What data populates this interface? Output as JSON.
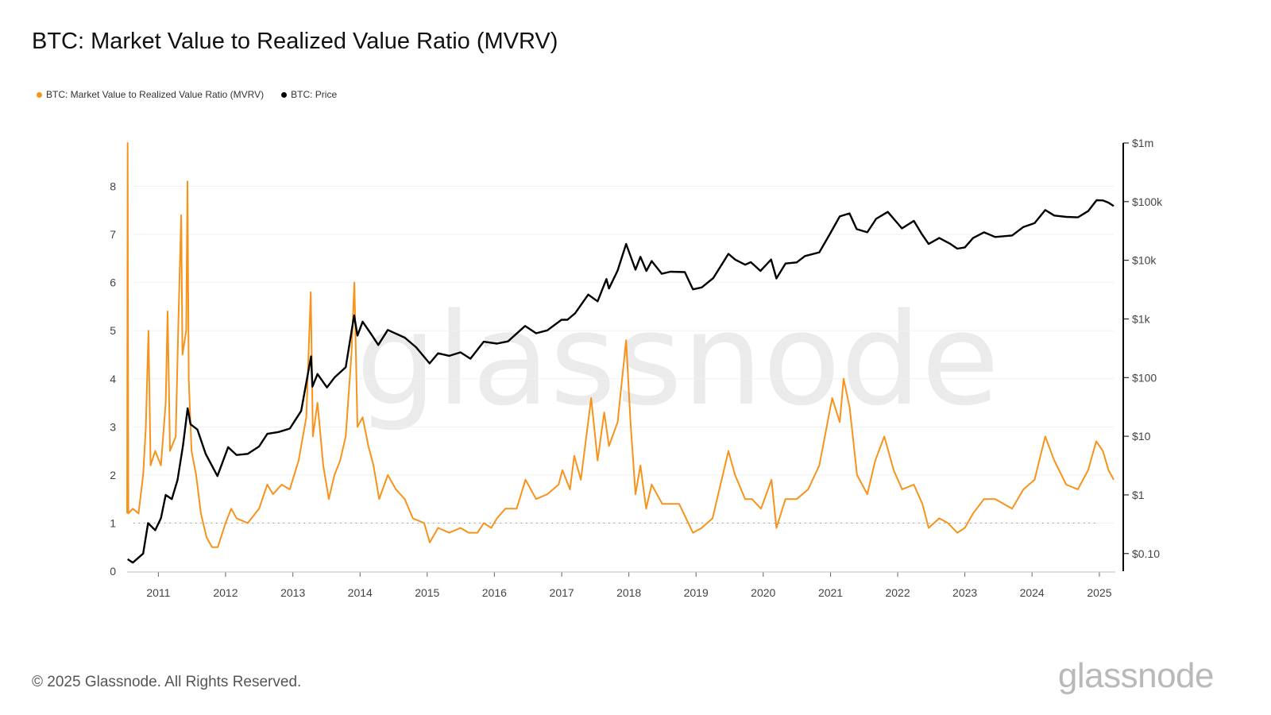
{
  "header": {
    "title": "BTC: Market Value to Realized Value Ratio (MVRV)"
  },
  "legend": [
    {
      "label": "BTC: Market Value to Realized Value Ratio (MVRV)",
      "color": "#f7931a"
    },
    {
      "label": "BTC: Price",
      "color": "#000000"
    }
  ],
  "watermark": "glassnode",
  "footer": {
    "copyright": "© 2025 Glassnode. All Rights Reserved.",
    "brand": "glassnode"
  },
  "chart_data": {
    "type": "line",
    "title": "BTC: Market Value to Realized Value Ratio (MVRV)",
    "x_ticks": [
      "2011",
      "2012",
      "2013",
      "2014",
      "2015",
      "2016",
      "2017",
      "2018",
      "2019",
      "2020",
      "2021",
      "2022",
      "2023",
      "2024",
      "2025"
    ],
    "y_left_ticks": [
      "0",
      "1",
      "2",
      "3",
      "4",
      "5",
      "6",
      "7",
      "8"
    ],
    "y_left_range": [
      0,
      8.9
    ],
    "y_right_ticks": [
      "$0.10",
      "$1",
      "$10",
      "$100",
      "$1k",
      "$10k",
      "$100k",
      "$1m"
    ],
    "y_right_scale": "log",
    "y_right_range": [
      0.05,
      1000000
    ],
    "x_range": [
      "2010-07-15",
      "2025-03-20"
    ],
    "reference_line": {
      "axis": "left",
      "value": 1,
      "style": "dotted"
    },
    "grid": "horizontal",
    "legend_position": "top-left",
    "series": [
      {
        "name": "BTC: Market Value to Realized Value Ratio (MVRV)",
        "color": "#f7931a",
        "axis": "left",
        "points": [
          [
            "2010-07-15",
            1.2
          ],
          [
            "2010-07-18",
            8.9
          ],
          [
            "2010-07-22",
            1.2
          ],
          [
            "2010-08-15",
            1.3
          ],
          [
            "2010-09-15",
            1.2
          ],
          [
            "2010-10-10",
            2.0
          ],
          [
            "2010-10-25",
            3.0
          ],
          [
            "2010-11-08",
            5.0
          ],
          [
            "2010-11-20",
            2.2
          ],
          [
            "2010-12-15",
            2.5
          ],
          [
            "2011-01-15",
            2.2
          ],
          [
            "2011-02-10",
            3.5
          ],
          [
            "2011-02-20",
            5.4
          ],
          [
            "2011-03-05",
            2.5
          ],
          [
            "2011-04-05",
            2.8
          ],
          [
            "2011-04-20",
            5.2
          ],
          [
            "2011-05-05",
            7.4
          ],
          [
            "2011-05-12",
            4.5
          ],
          [
            "2011-06-01",
            5.0
          ],
          [
            "2011-06-08",
            8.1
          ],
          [
            "2011-06-15",
            4.0
          ],
          [
            "2011-06-30",
            2.5
          ],
          [
            "2011-07-25",
            2.0
          ],
          [
            "2011-08-20",
            1.2
          ],
          [
            "2011-09-20",
            0.7
          ],
          [
            "2011-10-20",
            0.5
          ],
          [
            "2011-11-20",
            0.5
          ],
          [
            "2012-01-01",
            1.0
          ],
          [
            "2012-02-01",
            1.3
          ],
          [
            "2012-03-01",
            1.1
          ],
          [
            "2012-05-01",
            1.0
          ],
          [
            "2012-07-01",
            1.3
          ],
          [
            "2012-08-15",
            1.8
          ],
          [
            "2012-09-15",
            1.6
          ],
          [
            "2012-11-01",
            1.8
          ],
          [
            "2012-12-15",
            1.7
          ],
          [
            "2013-02-01",
            2.3
          ],
          [
            "2013-03-15",
            3.2
          ],
          [
            "2013-04-08",
            5.8
          ],
          [
            "2013-04-20",
            2.8
          ],
          [
            "2013-05-15",
            3.5
          ],
          [
            "2013-06-15",
            2.2
          ],
          [
            "2013-07-15",
            1.5
          ],
          [
            "2013-08-15",
            2.0
          ],
          [
            "2013-09-15",
            2.3
          ],
          [
            "2013-10-15",
            2.8
          ],
          [
            "2013-11-15",
            4.5
          ],
          [
            "2013-12-01",
            6.0
          ],
          [
            "2013-12-18",
            3.0
          ],
          [
            "2014-01-15",
            3.2
          ],
          [
            "2014-02-15",
            2.6
          ],
          [
            "2014-03-15",
            2.2
          ],
          [
            "2014-04-15",
            1.5
          ],
          [
            "2014-06-01",
            2.0
          ],
          [
            "2014-07-15",
            1.7
          ],
          [
            "2014-09-01",
            1.5
          ],
          [
            "2014-10-15",
            1.1
          ],
          [
            "2014-12-15",
            1.0
          ],
          [
            "2015-01-15",
            0.6
          ],
          [
            "2015-03-01",
            0.9
          ],
          [
            "2015-05-01",
            0.8
          ],
          [
            "2015-07-01",
            0.9
          ],
          [
            "2015-08-15",
            0.8
          ],
          [
            "2015-10-01",
            0.8
          ],
          [
            "2015-11-05",
            1.0
          ],
          [
            "2015-12-15",
            0.9
          ],
          [
            "2016-01-15",
            1.1
          ],
          [
            "2016-03-01",
            1.3
          ],
          [
            "2016-05-01",
            1.3
          ],
          [
            "2016-06-18",
            1.9
          ],
          [
            "2016-08-15",
            1.5
          ],
          [
            "2016-10-15",
            1.6
          ],
          [
            "2016-12-15",
            1.8
          ],
          [
            "2017-01-05",
            2.1
          ],
          [
            "2017-02-15",
            1.7
          ],
          [
            "2017-03-10",
            2.4
          ],
          [
            "2017-04-15",
            1.9
          ],
          [
            "2017-06-10",
            3.6
          ],
          [
            "2017-07-15",
            2.3
          ],
          [
            "2017-08-20",
            3.3
          ],
          [
            "2017-09-15",
            2.6
          ],
          [
            "2017-11-01",
            3.1
          ],
          [
            "2017-12-17",
            4.8
          ],
          [
            "2018-01-10",
            3.1
          ],
          [
            "2018-02-06",
            1.6
          ],
          [
            "2018-03-05",
            2.2
          ],
          [
            "2018-04-05",
            1.3
          ],
          [
            "2018-05-05",
            1.8
          ],
          [
            "2018-07-01",
            1.4
          ],
          [
            "2018-08-15",
            1.4
          ],
          [
            "2018-10-01",
            1.4
          ],
          [
            "2018-11-20",
            1.0
          ],
          [
            "2018-12-15",
            0.8
          ],
          [
            "2019-02-01",
            0.9
          ],
          [
            "2019-04-01",
            1.1
          ],
          [
            "2019-06-26",
            2.5
          ],
          [
            "2019-08-01",
            2.0
          ],
          [
            "2019-09-25",
            1.5
          ],
          [
            "2019-11-01",
            1.5
          ],
          [
            "2019-12-20",
            1.3
          ],
          [
            "2020-02-15",
            1.9
          ],
          [
            "2020-03-13",
            0.9
          ],
          [
            "2020-05-01",
            1.5
          ],
          [
            "2020-07-01",
            1.5
          ],
          [
            "2020-09-01",
            1.7
          ],
          [
            "2020-11-01",
            2.2
          ],
          [
            "2021-01-10",
            3.6
          ],
          [
            "2021-02-20",
            3.1
          ],
          [
            "2021-03-13",
            4.0
          ],
          [
            "2021-04-15",
            3.4
          ],
          [
            "2021-05-25",
            2.0
          ],
          [
            "2021-07-20",
            1.6
          ],
          [
            "2021-09-01",
            2.3
          ],
          [
            "2021-10-20",
            2.8
          ],
          [
            "2021-12-10",
            2.1
          ],
          [
            "2022-01-25",
            1.7
          ],
          [
            "2022-03-30",
            1.8
          ],
          [
            "2022-05-15",
            1.4
          ],
          [
            "2022-06-18",
            0.9
          ],
          [
            "2022-08-15",
            1.1
          ],
          [
            "2022-10-01",
            1.0
          ],
          [
            "2022-11-21",
            0.8
          ],
          [
            "2023-01-01",
            0.9
          ],
          [
            "2023-02-15",
            1.2
          ],
          [
            "2023-04-15",
            1.5
          ],
          [
            "2023-06-15",
            1.5
          ],
          [
            "2023-09-15",
            1.3
          ],
          [
            "2023-11-15",
            1.7
          ],
          [
            "2024-01-15",
            1.9
          ],
          [
            "2024-03-13",
            2.8
          ],
          [
            "2024-05-01",
            2.3
          ],
          [
            "2024-07-05",
            1.8
          ],
          [
            "2024-09-06",
            1.7
          ],
          [
            "2024-11-01",
            2.1
          ],
          [
            "2024-12-15",
            2.7
          ],
          [
            "2025-01-20",
            2.5
          ],
          [
            "2025-02-20",
            2.1
          ],
          [
            "2025-03-20",
            1.9
          ]
        ]
      },
      {
        "name": "BTC: Price",
        "color": "#000000",
        "axis": "right",
        "points": [
          [
            "2010-07-18",
            0.08
          ],
          [
            "2010-08-15",
            0.07
          ],
          [
            "2010-10-10",
            0.1
          ],
          [
            "2010-11-06",
            0.33
          ],
          [
            "2010-12-15",
            0.25
          ],
          [
            "2011-01-15",
            0.4
          ],
          [
            "2011-02-10",
            1.0
          ],
          [
            "2011-03-15",
            0.85
          ],
          [
            "2011-04-15",
            1.8
          ],
          [
            "2011-05-15",
            7.0
          ],
          [
            "2011-06-09",
            30.0
          ],
          [
            "2011-06-25",
            16.0
          ],
          [
            "2011-08-01",
            13.0
          ],
          [
            "2011-09-15",
            5.0
          ],
          [
            "2011-11-18",
            2.1
          ],
          [
            "2012-01-15",
            6.5
          ],
          [
            "2012-03-01",
            4.8
          ],
          [
            "2012-05-01",
            5.0
          ],
          [
            "2012-07-01",
            6.7
          ],
          [
            "2012-08-15",
            11.0
          ],
          [
            "2012-10-15",
            11.8
          ],
          [
            "2012-12-15",
            13.5
          ],
          [
            "2013-02-15",
            27.0
          ],
          [
            "2013-04-10",
            230.0
          ],
          [
            "2013-04-17",
            70.0
          ],
          [
            "2013-05-15",
            115.0
          ],
          [
            "2013-07-05",
            68.0
          ],
          [
            "2013-08-15",
            100.0
          ],
          [
            "2013-10-15",
            150.0
          ],
          [
            "2013-11-30",
            1150.0
          ],
          [
            "2013-12-18",
            520.0
          ],
          [
            "2014-01-15",
            900.0
          ],
          [
            "2014-03-01",
            560.0
          ],
          [
            "2014-04-10",
            360.0
          ],
          [
            "2014-06-01",
            650.0
          ],
          [
            "2014-09-01",
            480.0
          ],
          [
            "2014-11-01",
            330.0
          ],
          [
            "2015-01-14",
            175.0
          ],
          [
            "2015-03-01",
            260.0
          ],
          [
            "2015-05-01",
            235.0
          ],
          [
            "2015-07-01",
            270.0
          ],
          [
            "2015-08-24",
            210.0
          ],
          [
            "2015-11-04",
            410.0
          ],
          [
            "2016-01-15",
            380.0
          ],
          [
            "2016-03-15",
            415.0
          ],
          [
            "2016-06-16",
            760.0
          ],
          [
            "2016-08-15",
            570.0
          ],
          [
            "2016-10-15",
            640.0
          ],
          [
            "2016-12-31",
            970.0
          ],
          [
            "2017-02-01",
            970.0
          ],
          [
            "2017-03-15",
            1250.0
          ],
          [
            "2017-05-25",
            2600.0
          ],
          [
            "2017-07-15",
            2000.0
          ],
          [
            "2017-09-01",
            4800.0
          ],
          [
            "2017-09-15",
            3300.0
          ],
          [
            "2017-11-01",
            6700.0
          ],
          [
            "2017-12-17",
            19000.0
          ],
          [
            "2018-02-06",
            6900.0
          ],
          [
            "2018-03-05",
            11500.0
          ],
          [
            "2018-04-06",
            6600.0
          ],
          [
            "2018-05-05",
            9700.0
          ],
          [
            "2018-06-29",
            5900.0
          ],
          [
            "2018-08-15",
            6400.0
          ],
          [
            "2018-11-01",
            6300.0
          ],
          [
            "2018-12-15",
            3200.0
          ],
          [
            "2019-02-01",
            3450.0
          ],
          [
            "2019-04-05",
            5000.0
          ],
          [
            "2019-06-26",
            12900.0
          ],
          [
            "2019-08-01",
            10300.0
          ],
          [
            "2019-09-25",
            8400.0
          ],
          [
            "2019-10-26",
            9300.0
          ],
          [
            "2019-12-17",
            6600.0
          ],
          [
            "2020-02-13",
            10300.0
          ],
          [
            "2020-03-13",
            4900.0
          ],
          [
            "2020-05-01",
            8800.0
          ],
          [
            "2020-07-01",
            9200.0
          ],
          [
            "2020-08-15",
            11800.0
          ],
          [
            "2020-11-01",
            13700.0
          ],
          [
            "2020-12-31",
            29000.0
          ],
          [
            "2021-02-20",
            56000.0
          ],
          [
            "2021-04-14",
            63000.0
          ],
          [
            "2021-05-23",
            34000.0
          ],
          [
            "2021-07-20",
            30000.0
          ],
          [
            "2021-09-06",
            51000.0
          ],
          [
            "2021-11-08",
            67000.0
          ],
          [
            "2022-01-24",
            35000.0
          ],
          [
            "2022-03-30",
            47000.0
          ],
          [
            "2022-05-12",
            28000.0
          ],
          [
            "2022-06-18",
            19000.0
          ],
          [
            "2022-08-15",
            24000.0
          ],
          [
            "2022-10-15",
            19000.0
          ],
          [
            "2022-11-21",
            15800.0
          ],
          [
            "2023-01-01",
            16600.0
          ],
          [
            "2023-02-15",
            24000.0
          ],
          [
            "2023-04-15",
            30000.0
          ],
          [
            "2023-06-15",
            25000.0
          ],
          [
            "2023-09-15",
            26500.0
          ],
          [
            "2023-11-15",
            37000.0
          ],
          [
            "2024-01-15",
            43000.0
          ],
          [
            "2024-03-13",
            72000.0
          ],
          [
            "2024-05-01",
            58000.0
          ],
          [
            "2024-07-05",
            55000.0
          ],
          [
            "2024-09-06",
            54000.0
          ],
          [
            "2024-11-01",
            69000.0
          ],
          [
            "2024-12-17",
            106000.0
          ],
          [
            "2025-01-20",
            105000.0
          ],
          [
            "2025-02-20",
            96000.0
          ],
          [
            "2025-03-20",
            84000.0
          ]
        ]
      }
    ]
  }
}
